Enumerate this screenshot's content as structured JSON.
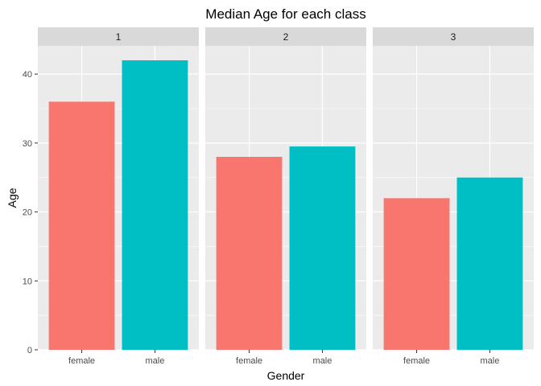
{
  "chart_data": {
    "type": "bar",
    "title": "Median Age for each class",
    "xlabel": "Gender",
    "ylabel": "Age",
    "ylim": [
      0,
      44.1
    ],
    "y_ticks": [
      0,
      10,
      20,
      30,
      40
    ],
    "categories": [
      "female",
      "male"
    ],
    "category_colors": [
      "#F8766D",
      "#00BFC4"
    ],
    "grid": true,
    "legend": "none",
    "panel_background": "#EBEBEB",
    "strip_background": "#D9D9D9",
    "gridline_color": "#FFFFFF",
    "facets": [
      {
        "label": "1",
        "values": [
          36,
          42
        ]
      },
      {
        "label": "2",
        "values": [
          28,
          29.5
        ]
      },
      {
        "label": "3",
        "values": [
          22,
          25
        ]
      }
    ]
  }
}
